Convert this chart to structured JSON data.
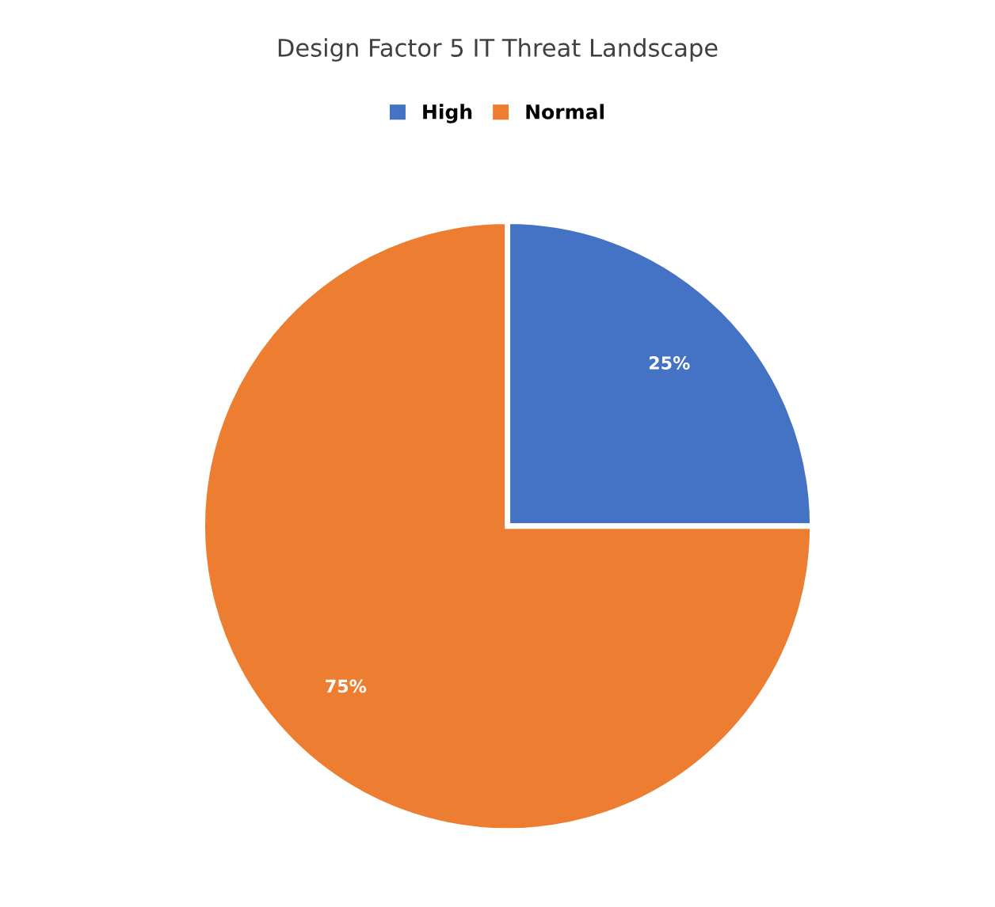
{
  "chart_data": {
    "type": "pie",
    "title": "Design Factor 5 IT Threat Landscape",
    "categories": [
      "High",
      "Normal"
    ],
    "values": [
      25,
      75
    ],
    "colors": [
      "#4472c4",
      "#ed7d31"
    ],
    "value_labels": [
      "25%",
      "75%"
    ],
    "legend": "top"
  }
}
